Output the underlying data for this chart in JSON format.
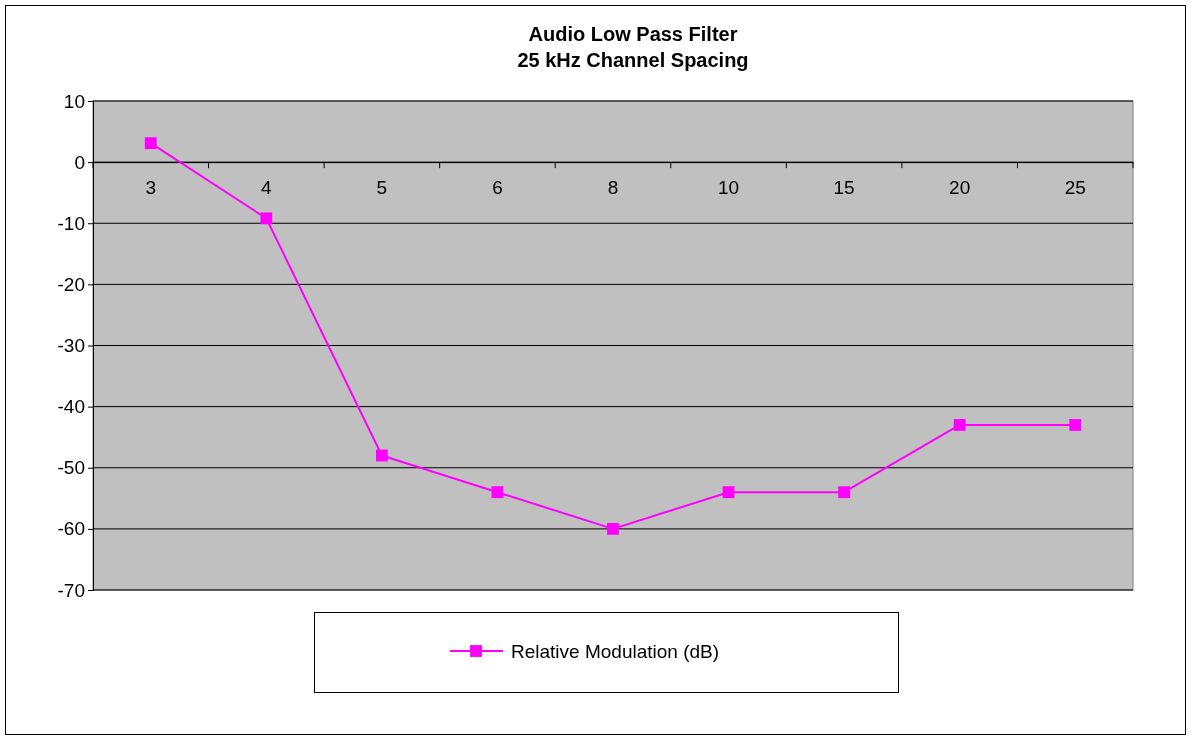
{
  "chart_data": {
    "type": "line",
    "title": "Audio Low Pass Filter\n25 kHz Channel Spacing",
    "categories": [
      "3",
      "4",
      "5",
      "6",
      "8",
      "10",
      "15",
      "20",
      "25"
    ],
    "series": [
      {
        "name": "Relative Modulation (dB)",
        "color": "#ff00ff",
        "values": [
          3.1,
          -9.2,
          -48,
          -54,
          -60,
          -54,
          -54,
          -43,
          -43
        ]
      }
    ],
    "ylim": [
      -70,
      10
    ],
    "yticks": [
      -70,
      -60,
      -50,
      -40,
      -30,
      -20,
      -10,
      0,
      10
    ],
    "grid": "y",
    "legend": "bottom",
    "marker": "square",
    "line_style": "solid"
  }
}
